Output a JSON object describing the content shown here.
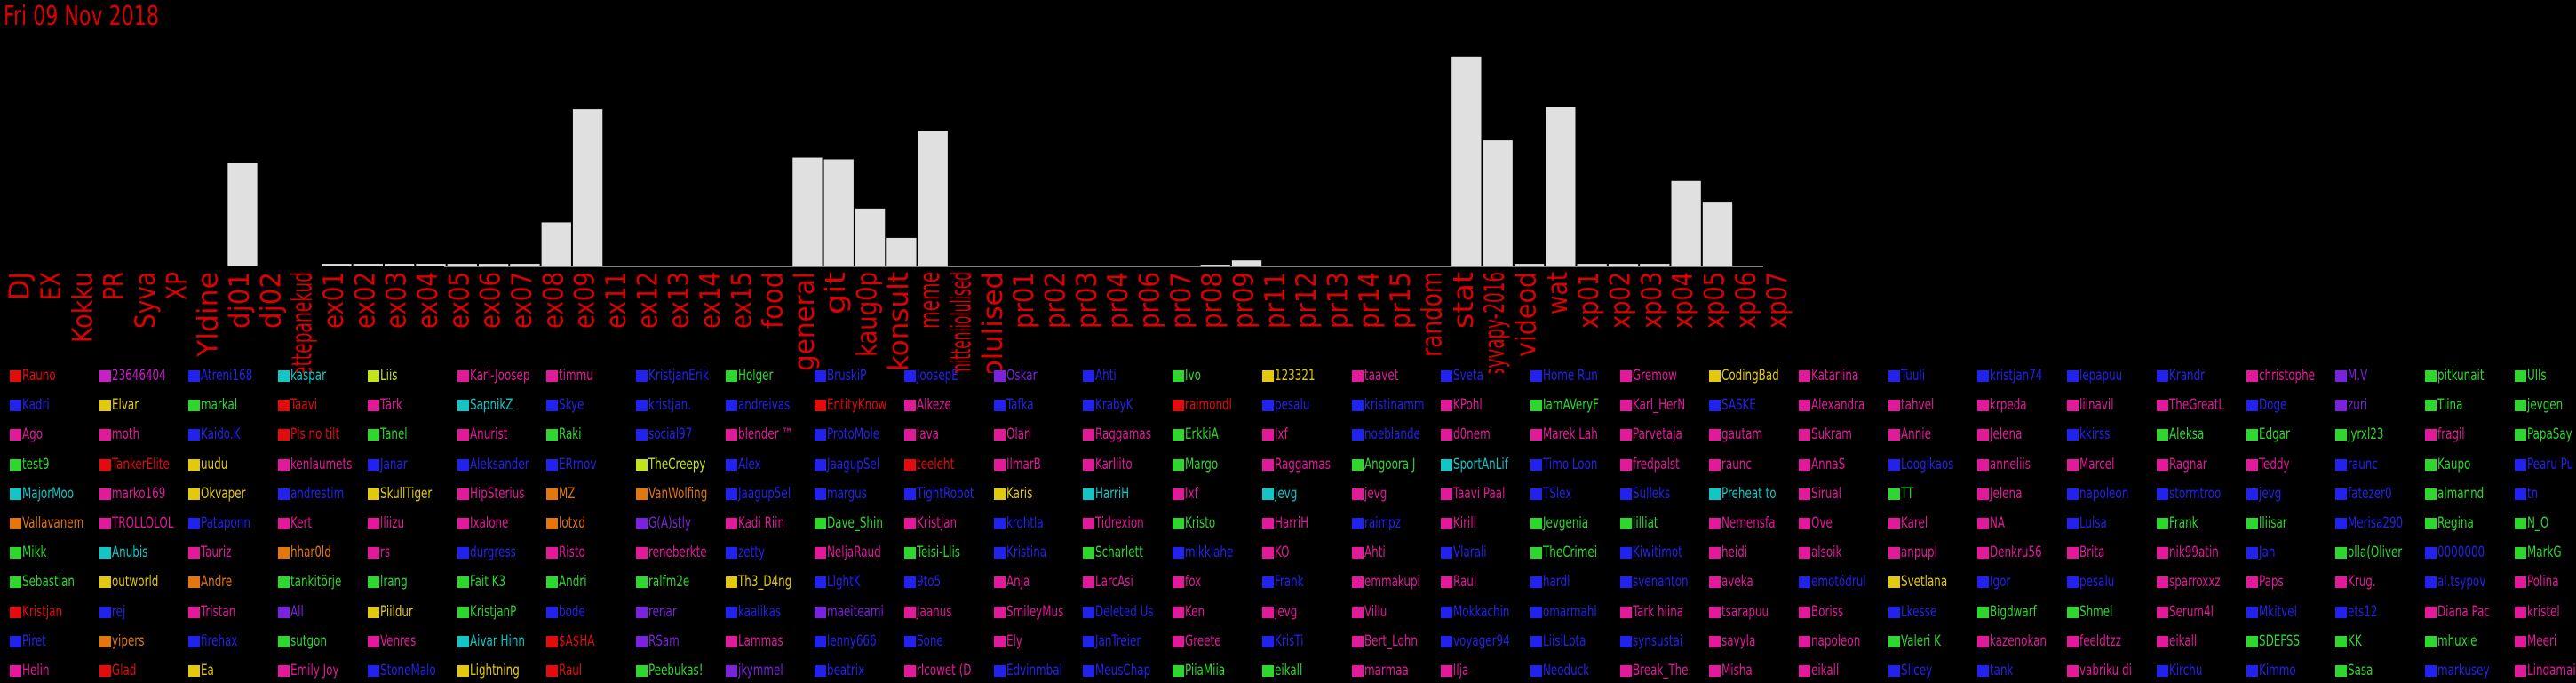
{
  "title": "Fri 09 Nov 2018",
  "colors": {
    "background": "#000000",
    "bar": "#e0e0e0",
    "axis": "#ffffff",
    "label": "#dd0000"
  },
  "chart_data": {
    "type": "bar",
    "categories": [
      "DJ",
      "EX",
      "Kokku",
      "PR",
      "Syva",
      "XP",
      "Yldine",
      "dj01",
      "dj02",
      "ettepanekud",
      "ex01",
      "ex02",
      "ex03",
      "ex04",
      "ex05",
      "ex06",
      "ex07",
      "ex08",
      "ex09",
      "ex11",
      "ex12",
      "ex13",
      "ex14",
      "ex15",
      "food",
      "general",
      "git",
      "kaug0p",
      "konsult",
      "meme",
      "mitteniiolulised",
      "olulised",
      "pr01",
      "pr02",
      "pr03",
      "pr04",
      "pr06",
      "pr07",
      "pr08",
      "pr09",
      "pr11",
      "pr12",
      "pr13",
      "pr14",
      "pr15",
      "random",
      "stat",
      "syvapy-2016",
      "videod",
      "wat",
      "xp01",
      "xp02",
      "xp03",
      "xp04",
      "xp05",
      "xp06",
      "xp07"
    ],
    "values": [
      0,
      0,
      0,
      0,
      0,
      0,
      0,
      120,
      0,
      0,
      3,
      3,
      3,
      3,
      3,
      3,
      3,
      51,
      182,
      0,
      0,
      0,
      0,
      0,
      0,
      126,
      124,
      67,
      33,
      157,
      0,
      0,
      0,
      0,
      0,
      0,
      0,
      0,
      2,
      7,
      0,
      0,
      0,
      0,
      0,
      0,
      243,
      146,
      3,
      185,
      3,
      3,
      3,
      99,
      75,
      0,
      0
    ],
    "ylim": [
      0,
      250
    ]
  },
  "legend": [
    [
      [
        "Rauno",
        "#e30b0b"
      ],
      [
        "Kadri",
        "#2222ee"
      ],
      [
        "Ago",
        "#e3199b"
      ],
      [
        "test9",
        "#2ed72e"
      ],
      [
        "MajorMoo",
        "#13c6c6"
      ],
      [
        "Vallavanem",
        "#e3760c"
      ],
      [
        "Mikk",
        "#2ed72e"
      ],
      [
        "Sebastian",
        "#2ed72e"
      ],
      [
        "Kristjan",
        "#e30b0b"
      ],
      [
        "Piret",
        "#2222ee"
      ],
      [
        "Helin",
        "#e3199b"
      ]
    ],
    [
      [
        "23646404",
        "#cb1ecb"
      ],
      [
        "Elvar",
        "#e3c90c"
      ],
      [
        "moth",
        "#e3199b"
      ],
      [
        "TankerElite",
        "#e30b0b"
      ],
      [
        "marko169",
        "#e3199b"
      ],
      [
        "TROLLOLOL",
        "#e3199b"
      ],
      [
        "Anubis",
        "#13c6c6"
      ],
      [
        "outworld",
        "#e3c90c"
      ],
      [
        "rej",
        "#2222ee"
      ],
      [
        "yipers",
        "#e3760c"
      ],
      [
        "Glad",
        "#e30b0b"
      ]
    ],
    [
      [
        "Atreni168",
        "#2222ee"
      ],
      [
        "markal",
        "#2ed72e"
      ],
      [
        "Kaido.K",
        "#2222ee"
      ],
      [
        "uudu",
        "#e3c90c"
      ],
      [
        "Okvaper",
        "#e3c90c"
      ],
      [
        "Pataponn",
        "#2222ee"
      ],
      [
        "Tauriz",
        "#e3199b"
      ],
      [
        "Andre",
        "#e3760c"
      ],
      [
        "Tristan",
        "#e3199b"
      ],
      [
        "firehax",
        "#2222ee"
      ],
      [
        "Ea",
        "#e3c90c"
      ]
    ],
    [
      [
        "kaspar",
        "#13c6c6"
      ],
      [
        "Taavi",
        "#e30b0b"
      ],
      [
        "Pls no tilt",
        "#e30b0b"
      ],
      [
        "kenlaumets",
        "#e3199b"
      ],
      [
        "andrestim",
        "#2222ee"
      ],
      [
        "Kert",
        "#e3199b"
      ],
      [
        "hhar0ld",
        "#e3760c"
      ],
      [
        "tankitörje",
        "#2ed72e"
      ],
      [
        "All",
        "#7a22dd"
      ],
      [
        "sutgon",
        "#2ed72e"
      ],
      [
        "Emily Joy",
        "#e3199b"
      ]
    ],
    [
      [
        "Liis",
        "#c4e31b"
      ],
      [
        "Tärk",
        "#e3199b"
      ],
      [
        "Tanel",
        "#2ed72e"
      ],
      [
        "Janar",
        "#2222ee"
      ],
      [
        "SkullTiger",
        "#e3c90c"
      ],
      [
        "lliizu",
        "#e3199b"
      ],
      [
        "rs",
        "#e3199b"
      ],
      [
        "lrang",
        "#2ed72e"
      ],
      [
        "Piildur",
        "#e3c90c"
      ],
      [
        "Venres",
        "#e3199b"
      ],
      [
        "StoneMalo",
        "#2222ee"
      ]
    ],
    [
      [
        "Karl-Joosep",
        "#e3199b"
      ],
      [
        "SapnikZ",
        "#13c6c6"
      ],
      [
        "Anurist",
        "#e3199b"
      ],
      [
        "Aleksander",
        "#2222ee"
      ],
      [
        "HipSterius",
        "#e3199b"
      ],
      [
        "Ixalone",
        "#e3199b"
      ],
      [
        "durgress",
        "#2222ee"
      ],
      [
        "Fait K3",
        "#2ed72e"
      ],
      [
        "KristjanP",
        "#2ed72e"
      ],
      [
        "Aivar Hinn",
        "#13c6c6"
      ],
      [
        "Lightning",
        "#e3c90c"
      ]
    ],
    [
      [
        "timmu",
        "#e3199b"
      ],
      [
        "Skye",
        "#2222ee"
      ],
      [
        "Raki",
        "#2ed72e"
      ],
      [
        "ERrnov",
        "#2222ee"
      ],
      [
        "MZ",
        "#e3760c"
      ],
      [
        "lotxd",
        "#e3760c"
      ],
      [
        "Risto",
        "#e3199b"
      ],
      [
        "Andri",
        "#2ed72e"
      ],
      [
        "bode",
        "#2222ee"
      ],
      [
        "$A$HA",
        "#e30b0b"
      ],
      [
        "Raul",
        "#e30b0b"
      ]
    ],
    [
      [
        "KristjanErik",
        "#2222ee"
      ],
      [
        "kristjan.",
        "#2222ee"
      ],
      [
        "social97",
        "#2222ee"
      ],
      [
        "TheCreepy",
        "#c4e31b"
      ],
      [
        "VanWolfing",
        "#e3760c"
      ],
      [
        "G(A)stly",
        "#7a22dd"
      ],
      [
        "reneberkte",
        "#e3199b"
      ],
      [
        "ralfm2e",
        "#2ed72e"
      ],
      [
        "renar",
        "#7a22dd"
      ],
      [
        "RSam",
        "#7a22dd"
      ],
      [
        "Peebukas!",
        "#2ed72e"
      ]
    ],
    [
      [
        "Holger",
        "#2ed72e"
      ],
      [
        "andreivas",
        "#2222ee"
      ],
      [
        "blender ™",
        "#e3199b"
      ],
      [
        "Alex",
        "#2222ee"
      ],
      [
        "Jaagup5el",
        "#2222ee"
      ],
      [
        "Kadi Riin",
        "#e3199b"
      ],
      [
        "zetty",
        "#2222ee"
      ],
      [
        "Th3_D4ng",
        "#e3c90c"
      ],
      [
        "kaalikas",
        "#2222ee"
      ],
      [
        "Lammas",
        "#e3199b"
      ],
      [
        "jkymmel",
        "#7a22dd"
      ]
    ],
    [
      [
        "BruskiP",
        "#2222ee"
      ],
      [
        "EntityKnow",
        "#e30b0b"
      ],
      [
        "ProtoMole",
        "#2222ee"
      ],
      [
        "JaagupSel",
        "#2222ee"
      ],
      [
        "margus",
        "#2222ee"
      ],
      [
        "Dave_Shin",
        "#2ed72e"
      ],
      [
        "NeljaRaud",
        "#e3199b"
      ],
      [
        "LlghtK",
        "#2222ee"
      ],
      [
        "maeiteami",
        "#7a22dd"
      ],
      [
        "lenny666",
        "#2222ee"
      ],
      [
        "beatrix",
        "#2222ee"
      ]
    ],
    [
      [
        "JoosepE",
        "#2222ee"
      ],
      [
        "Alkeze",
        "#e3199b"
      ],
      [
        "lava",
        "#e3199b"
      ],
      [
        "teeleht",
        "#e30b0b"
      ],
      [
        "TightRobot",
        "#2222ee"
      ],
      [
        "Kristjan",
        "#e3199b"
      ],
      [
        "Teisi-Llis",
        "#2ed72e"
      ],
      [
        "9to5",
        "#2222ee"
      ],
      [
        "Jaanus",
        "#e3199b"
      ],
      [
        "Sone",
        "#2222ee"
      ],
      [
        "rlcowet (D",
        "#e3199b"
      ]
    ],
    [
      [
        "Oskar",
        "#7a22dd"
      ],
      [
        "Tafka",
        "#2222ee"
      ],
      [
        "Olari",
        "#e3199b"
      ],
      [
        "IlmarB",
        "#e3199b"
      ],
      [
        "Karis",
        "#e3c90c"
      ],
      [
        "krohtla",
        "#2222ee"
      ],
      [
        "Kristina",
        "#2222ee"
      ],
      [
        "Anja",
        "#e3199b"
      ],
      [
        "SmileyMus",
        "#e3199b"
      ],
      [
        "Ely",
        "#e3199b"
      ],
      [
        "Edvinmbal",
        "#2222ee"
      ]
    ],
    [
      [
        "Ahti",
        "#2222ee"
      ],
      [
        "KrabyK",
        "#2222ee"
      ],
      [
        "Raggamas",
        "#e3199b"
      ],
      [
        "Karliito",
        "#e3199b"
      ],
      [
        "HarriH",
        "#13c6c6"
      ],
      [
        "Tidrexion",
        "#e3199b"
      ],
      [
        "Scharlett",
        "#2ed72e"
      ],
      [
        "LarcAsi",
        "#e3199b"
      ],
      [
        "Deleted Us",
        "#2222ee"
      ],
      [
        "JanTreier",
        "#2222ee"
      ],
      [
        "MeusChap",
        "#2222ee"
      ]
    ],
    [
      [
        "Ivo",
        "#2ed72e"
      ],
      [
        "raimondl",
        "#e30b0b"
      ],
      [
        "ErkkiA",
        "#2ed72e"
      ],
      [
        "Margo",
        "#2ed72e"
      ],
      [
        "Ixf",
        "#e3199b"
      ],
      [
        "Kristo",
        "#2ed72e"
      ],
      [
        "mikklahe",
        "#2222ee"
      ],
      [
        "fox",
        "#e3199b"
      ],
      [
        "Ken",
        "#e3199b"
      ],
      [
        "Greete",
        "#e3199b"
      ],
      [
        "PiiaMiia",
        "#2ed72e"
      ]
    ],
    [
      [
        "123321",
        "#e3c90c"
      ],
      [
        "pesalu",
        "#2222ee"
      ],
      [
        "Ixf",
        "#e3199b"
      ],
      [
        "Raggamas",
        "#e3199b"
      ],
      [
        "jevg",
        "#13c6c6"
      ],
      [
        "HarriH",
        "#e3199b"
      ],
      [
        "KO",
        "#e3199b"
      ],
      [
        "Frank",
        "#2222ee"
      ],
      [
        "jevg",
        "#e3199b"
      ],
      [
        "KrisTi",
        "#2222ee"
      ],
      [
        "eikall",
        "#2ed72e"
      ]
    ],
    [
      [
        "taavet",
        "#e3199b"
      ],
      [
        "kristinamm",
        "#2222ee"
      ],
      [
        "noeblande",
        "#2222ee"
      ],
      [
        "Angoora J",
        "#2ed72e"
      ],
      [
        "jevg",
        "#e3199b"
      ],
      [
        "raimpz",
        "#2222ee"
      ],
      [
        "Ahti",
        "#e3199b"
      ],
      [
        "emmakupi",
        "#e3199b"
      ],
      [
        "Villu",
        "#e3199b"
      ],
      [
        "Bert_Lohn",
        "#e3199b"
      ],
      [
        "marmaa",
        "#e3199b"
      ]
    ],
    [
      [
        "Sveta",
        "#2222ee"
      ],
      [
        "KPohl",
        "#e3199b"
      ],
      [
        "d0nem",
        "#e3199b"
      ],
      [
        "SportAnLif",
        "#13c6c6"
      ],
      [
        "Taavi Paal",
        "#e3199b"
      ],
      [
        "Kirill",
        "#e3199b"
      ],
      [
        "Vlarali",
        "#2222ee"
      ],
      [
        "Raul",
        "#e3199b"
      ],
      [
        "Mokkachin",
        "#2222ee"
      ],
      [
        "voyager94",
        "#2222ee"
      ],
      [
        "llja",
        "#e3199b"
      ]
    ],
    [
      [
        "Home Run",
        "#2222ee"
      ],
      [
        "IamAVeryF",
        "#2ed72e"
      ],
      [
        "Marek Lah",
        "#e3199b"
      ],
      [
        "Timo Loon",
        "#2222ee"
      ],
      [
        "TSlex",
        "#2222ee"
      ],
      [
        "Jevgenia",
        "#2ed72e"
      ],
      [
        "TheCrimei",
        "#2ed72e"
      ],
      [
        "hardl",
        "#2222ee"
      ],
      [
        "omarmahl",
        "#2222ee"
      ],
      [
        "LiisiLota",
        "#2222ee"
      ],
      [
        "Neoduck",
        "#2222ee"
      ]
    ],
    [
      [
        "Gremow",
        "#e3199b"
      ],
      [
        "Karl_HerN",
        "#e3199b"
      ],
      [
        "Parvetaja",
        "#e3199b"
      ],
      [
        "fredpalst",
        "#e3199b"
      ],
      [
        "Sulleks",
        "#2222ee"
      ],
      [
        "lilliat",
        "#2ed72e"
      ],
      [
        "Kiwitimot",
        "#2222ee"
      ],
      [
        "svenanton",
        "#2222ee"
      ],
      [
        "Tark hiina",
        "#e3199b"
      ],
      [
        "synsustai",
        "#2222ee"
      ],
      [
        "Break_The",
        "#e3199b"
      ]
    ],
    [
      [
        "CodingBad",
        "#e3c90c"
      ],
      [
        "SASKE",
        "#2222ee"
      ],
      [
        "gautam",
        "#e3199b"
      ],
      [
        "raunc",
        "#e3199b"
      ],
      [
        "Preheat to",
        "#13c6c6"
      ],
      [
        "Nemensfa",
        "#e3199b"
      ],
      [
        "heidi",
        "#e3199b"
      ],
      [
        "aveka",
        "#e3199b"
      ],
      [
        "tsarapuu",
        "#e3199b"
      ],
      [
        "savyla",
        "#e3199b"
      ],
      [
        "Misha",
        "#e3199b"
      ]
    ],
    [
      [
        "Katariina",
        "#e3199b"
      ],
      [
        "Alexandra",
        "#e3199b"
      ],
      [
        "Sukram",
        "#e3199b"
      ],
      [
        "AnnaS",
        "#e3199b"
      ],
      [
        "Sirual",
        "#e3199b"
      ],
      [
        "Ove",
        "#e3199b"
      ],
      [
        "alsoik",
        "#e3199b"
      ],
      [
        "emotödrul",
        "#2222ee"
      ],
      [
        "Boriss",
        "#e3199b"
      ],
      [
        "napoleon",
        "#e3199b"
      ],
      [
        "eikall",
        "#e3199b"
      ]
    ],
    [
      [
        "Tuuli",
        "#2222ee"
      ],
      [
        "tahvel",
        "#e3199b"
      ],
      [
        "Annie",
        "#e3199b"
      ],
      [
        "Loogikaos",
        "#2222ee"
      ],
      [
        "TT",
        "#2ed72e"
      ],
      [
        "Karel",
        "#e3199b"
      ],
      [
        "anpupl",
        "#e3199b"
      ],
      [
        "Svetlana",
        "#e3c90c"
      ],
      [
        "Lkesse",
        "#2222ee"
      ],
      [
        "Valeri K",
        "#2ed72e"
      ],
      [
        "Slicey",
        "#2222ee"
      ]
    ],
    [
      [
        "kristjan74",
        "#2222ee"
      ],
      [
        "krpeda",
        "#e3199b"
      ],
      [
        "Jelena",
        "#e3199b"
      ],
      [
        "anneliis",
        "#e3199b"
      ],
      [
        "Jelena",
        "#e3199b"
      ],
      [
        "NA",
        "#e3199b"
      ],
      [
        "Denkru56",
        "#e3199b"
      ],
      [
        "Igor",
        "#2222ee"
      ],
      [
        "Bigdwarf",
        "#2ed72e"
      ],
      [
        "kazenokan",
        "#e3199b"
      ],
      [
        "tank",
        "#2222ee"
      ]
    ],
    [
      [
        "lepapuu",
        "#2222ee"
      ],
      [
        "liinavil",
        "#e3199b"
      ],
      [
        "kkirss",
        "#2222ee"
      ],
      [
        "Marcel",
        "#e3199b"
      ],
      [
        "napoleon",
        "#2222ee"
      ],
      [
        "Luisa",
        "#2222ee"
      ],
      [
        "Brita",
        "#e3199b"
      ],
      [
        "pesalu",
        "#2222ee"
      ],
      [
        "Shmel",
        "#2ed72e"
      ],
      [
        "feeldtzz",
        "#e3199b"
      ],
      [
        "vabriku di",
        "#e3199b"
      ]
    ],
    [
      [
        "Krandr",
        "#2222ee"
      ],
      [
        "TheGreatL",
        "#e3199b"
      ],
      [
        "Aleksa",
        "#2ed72e"
      ],
      [
        "Ragnar",
        "#e3199b"
      ],
      [
        "stormtroo",
        "#2222ee"
      ],
      [
        "Frank",
        "#2ed72e"
      ],
      [
        "nik99atin",
        "#e3199b"
      ],
      [
        "sparroxxz",
        "#e3199b"
      ],
      [
        "Serum4l",
        "#e3199b"
      ],
      [
        "eikall",
        "#e3199b"
      ],
      [
        "Kirchu",
        "#2222ee"
      ]
    ],
    [
      [
        "christophe",
        "#e3199b"
      ],
      [
        "Doge",
        "#2222ee"
      ],
      [
        "Edgar",
        "#2ed72e"
      ],
      [
        "Teddy",
        "#e3199b"
      ],
      [
        "jevg",
        "#2222ee"
      ],
      [
        "lliisar",
        "#2ed72e"
      ],
      [
        "Jan",
        "#2222ee"
      ],
      [
        "Paps",
        "#e3199b"
      ],
      [
        "Mkitvel",
        "#2222ee"
      ],
      [
        "SDEFSS",
        "#2ed72e"
      ],
      [
        "Kimmo",
        "#2222ee"
      ]
    ],
    [
      [
        "M.V",
        "#7a22dd"
      ],
      [
        "zuri",
        "#7a22dd"
      ],
      [
        "jyrxl23",
        "#2ed72e"
      ],
      [
        "raunc",
        "#2222ee"
      ],
      [
        "fatezer0",
        "#2222ee"
      ],
      [
        "Merisa290",
        "#2222ee"
      ],
      [
        "olla(Oliver",
        "#2ed72e"
      ],
      [
        "Krug.",
        "#e3199b"
      ],
      [
        "ets12",
        "#2222ee"
      ],
      [
        "KK",
        "#2ed72e"
      ],
      [
        "Sasa",
        "#2ed72e"
      ]
    ],
    [
      [
        "pitkunait",
        "#2ed72e"
      ],
      [
        "Tiina",
        "#2ed72e"
      ],
      [
        "fragil",
        "#e3199b"
      ],
      [
        "Kaupo",
        "#2ed72e"
      ],
      [
        "almannd",
        "#2ed72e"
      ],
      [
        "Regina",
        "#2ed72e"
      ],
      [
        "0000000",
        "#2222ee"
      ],
      [
        "al.tsypov",
        "#2222ee"
      ],
      [
        "Diana Pac",
        "#e3199b"
      ],
      [
        "mhuxie",
        "#2ed72e"
      ],
      [
        "markusey",
        "#2222ee"
      ]
    ],
    [
      [
        "Ulls",
        "#2ed72e"
      ],
      [
        "jevgen",
        "#2ed72e"
      ],
      [
        "PapaSay",
        "#2ed72e"
      ],
      [
        "Pearu Pu",
        "#2222ee"
      ],
      [
        "tn",
        "#2222ee"
      ],
      [
        "N_O",
        "#2ed72e"
      ],
      [
        "MarkG",
        "#2ed72e"
      ],
      [
        "Polina",
        "#e3199b"
      ],
      [
        "kristel",
        "#e3199b"
      ],
      [
        "Meeri",
        "#e3199b"
      ],
      [
        "Lindamai",
        "#e3199b"
      ]
    ]
  ]
}
